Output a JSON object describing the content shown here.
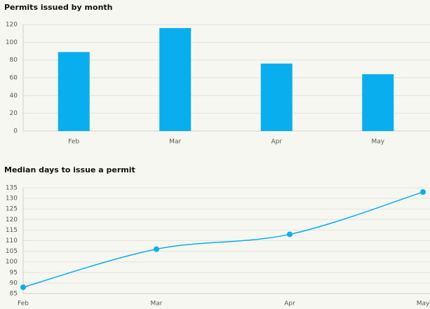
{
  "chart_data": [
    {
      "type": "bar",
      "title": "Permits issued by month",
      "categories": [
        "Feb",
        "Mar",
        "Apr",
        "May"
      ],
      "values": [
        89,
        116,
        76,
        64
      ],
      "color": "#09aeee",
      "ylim": [
        0,
        120
      ],
      "yticks": [
        0,
        20,
        40,
        60,
        80,
        100,
        120
      ],
      "grid": true
    },
    {
      "type": "line",
      "title": "Median days to issue a permit",
      "categories": [
        "Feb",
        "Mar",
        "Apr",
        "May"
      ],
      "values": [
        88,
        106,
        113,
        133
      ],
      "color": "#09aeee",
      "ylim": [
        85,
        135
      ],
      "yticks": [
        85,
        90,
        95,
        100,
        105,
        110,
        115,
        120,
        125,
        130,
        135
      ],
      "grid": true
    }
  ]
}
